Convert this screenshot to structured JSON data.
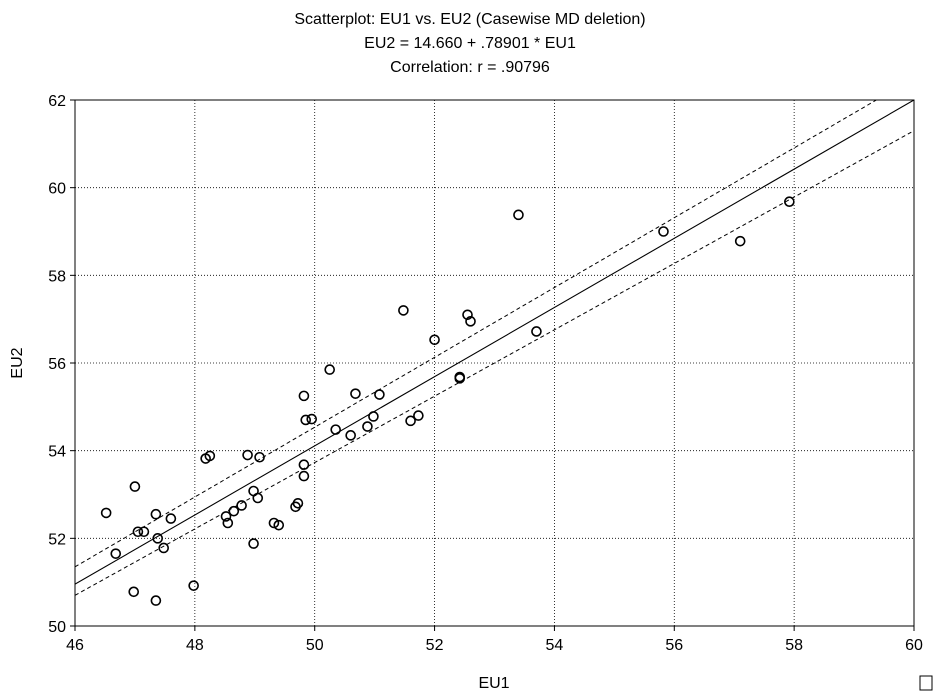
{
  "chart_data": {
    "type": "scatter",
    "title": "Scatterplot: EU1 vs. EU2 (Casewise MD deletion)",
    "subtitle": "EU2 = 14.660 + .78901 * EU1",
    "subtitle2": "Correlation: r = .90796",
    "xlabel": "EU1",
    "ylabel": "EU2",
    "xlim": [
      46,
      60
    ],
    "ylim": [
      50,
      62
    ],
    "xticks": [
      46,
      48,
      50,
      52,
      54,
      56,
      58,
      60
    ],
    "yticks": [
      50,
      52,
      54,
      56,
      58,
      60,
      62
    ],
    "grid": true,
    "fit": {
      "intercept": 14.66,
      "slope": 0.78901
    },
    "confidence_band": {
      "upper_at_xmin": 51.35,
      "upper_at_xmax": 62.5,
      "lower_at_xmin": 50.7,
      "lower_at_xmax": 61.3
    },
    "points": [
      [
        46.52,
        52.58
      ],
      [
        46.68,
        51.65
      ],
      [
        46.98,
        50.78
      ],
      [
        47.0,
        53.18
      ],
      [
        47.05,
        52.15
      ],
      [
        47.15,
        52.15
      ],
      [
        47.35,
        50.58
      ],
      [
        47.35,
        52.55
      ],
      [
        47.38,
        52.0
      ],
      [
        47.48,
        51.78
      ],
      [
        47.6,
        52.45
      ],
      [
        47.98,
        50.92
      ],
      [
        48.18,
        53.82
      ],
      [
        48.25,
        53.88
      ],
      [
        48.52,
        52.5
      ],
      [
        48.55,
        52.35
      ],
      [
        48.65,
        52.62
      ],
      [
        48.78,
        52.75
      ],
      [
        48.88,
        53.9
      ],
      [
        48.98,
        53.08
      ],
      [
        48.98,
        51.88
      ],
      [
        49.05,
        52.92
      ],
      [
        49.08,
        53.85
      ],
      [
        49.32,
        52.35
      ],
      [
        49.4,
        52.3
      ],
      [
        49.68,
        52.72
      ],
      [
        49.72,
        52.8
      ],
      [
        49.82,
        55.25
      ],
      [
        49.82,
        53.68
      ],
      [
        49.82,
        53.42
      ],
      [
        49.85,
        54.7
      ],
      [
        49.95,
        54.72
      ],
      [
        50.25,
        55.85
      ],
      [
        50.35,
        54.48
      ],
      [
        50.6,
        54.35
      ],
      [
        50.68,
        55.3
      ],
      [
        50.88,
        54.55
      ],
      [
        50.98,
        54.78
      ],
      [
        51.08,
        55.28
      ],
      [
        51.48,
        57.2
      ],
      [
        51.6,
        54.68
      ],
      [
        51.73,
        54.8
      ],
      [
        52.0,
        56.53
      ],
      [
        52.42,
        55.65
      ],
      [
        52.42,
        55.68
      ],
      [
        52.55,
        57.1
      ],
      [
        52.6,
        56.95
      ],
      [
        53.4,
        59.38
      ],
      [
        53.7,
        56.72
      ],
      [
        55.82,
        59.0
      ],
      [
        57.1,
        58.78
      ],
      [
        57.92,
        59.68
      ]
    ]
  }
}
